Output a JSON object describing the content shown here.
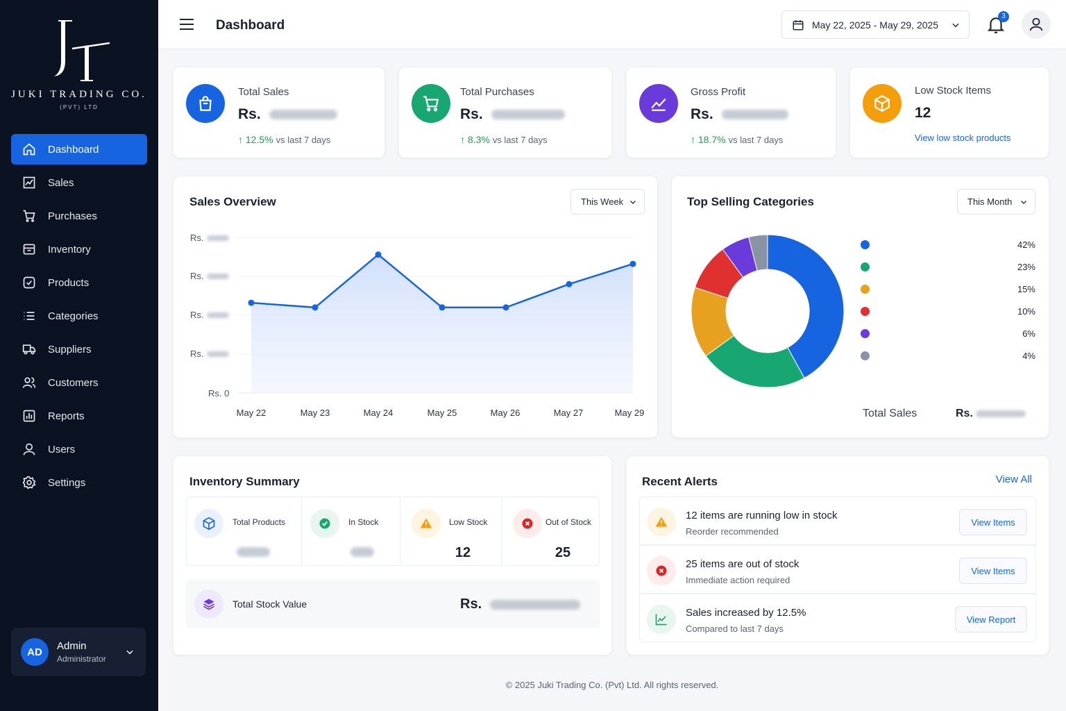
{
  "brand": {
    "name": "JUKI TRADING CO.",
    "sub": "(PVT) LTD"
  },
  "sidebar": {
    "items": [
      {
        "label": "Dashboard",
        "icon": "home-icon"
      },
      {
        "label": "Sales",
        "icon": "chart-line-icon"
      },
      {
        "label": "Purchases",
        "icon": "cart-icon"
      },
      {
        "label": "Inventory",
        "icon": "box-icon"
      },
      {
        "label": "Products",
        "icon": "package-icon"
      },
      {
        "label": "Categories",
        "icon": "list-icon"
      },
      {
        "label": "Suppliers",
        "icon": "truck-icon"
      },
      {
        "label": "Customers",
        "icon": "users-icon"
      },
      {
        "label": "Reports",
        "icon": "report-icon"
      },
      {
        "label": "Users",
        "icon": "user-icon"
      },
      {
        "label": "Settings",
        "icon": "gear-icon"
      }
    ],
    "user": {
      "initials": "AD",
      "name": "Admin",
      "role": "Administrator"
    }
  },
  "header": {
    "title": "Dashboard",
    "date_range": "May 22, 2025 - May 29, 2025",
    "notification_count": "3"
  },
  "stats": {
    "total_sales": {
      "label": "Total Sales",
      "currency": "Rs.",
      "change": "12.5%",
      "change_text": "vs last 7 days"
    },
    "total_purchases": {
      "label": "Total Purchases",
      "currency": "Rs.",
      "change": "8.3%",
      "change_text": "vs last 7 days"
    },
    "gross_profit": {
      "label": "Gross Profit",
      "currency": "Rs.",
      "change": "18.7%",
      "change_text": "vs last 7 days"
    },
    "low_stock": {
      "label": "Low Stock Items",
      "value": "12",
      "link": "View low stock products"
    }
  },
  "sales_overview": {
    "title": "Sales Overview",
    "period": "This Week",
    "y_prefix": "Rs.",
    "y_zero": "Rs. 0"
  },
  "top_categories": {
    "title": "Top Selling Categories",
    "period": "This Month",
    "total_label": "Total Sales",
    "total_currency": "Rs."
  },
  "chart_data": [
    {
      "type": "area",
      "title": "Sales Overview",
      "x": [
        "May 22",
        "May 23",
        "May 24",
        "May 25",
        "May 26",
        "May 27",
        "May 29"
      ],
      "y": [
        0.58,
        0.55,
        0.89,
        0.55,
        0.55,
        0.7,
        0.83
      ],
      "note_y": "relative values; y-axis value labels are obscured in source",
      "ylim": [
        0,
        1
      ],
      "grid": true
    },
    {
      "type": "pie",
      "title": "Top Selling Categories",
      "labels": [
        "",
        "",
        "",
        "",
        "",
        ""
      ],
      "values": [
        42,
        23,
        15,
        10,
        6,
        4
      ],
      "value_labels": [
        "42%",
        "23%",
        "15%",
        "10%",
        "6%",
        "4%"
      ],
      "colors": [
        "#1664e0",
        "#18a672",
        "#e8a020",
        "#e03030",
        "#6a3adb",
        "#8a93a3"
      ],
      "donut": true,
      "legend": "right"
    }
  ],
  "inventory_summary": {
    "title": "Inventory Summary",
    "cells": [
      {
        "label": "Total Products",
        "value": ""
      },
      {
        "label": "In Stock",
        "value": ""
      },
      {
        "label": "Low Stock",
        "value": "12"
      },
      {
        "label": "Out of Stock",
        "value": "25"
      }
    ],
    "total_stock_label": "Total Stock Value",
    "total_stock_currency": "Rs."
  },
  "alerts": {
    "title": "Recent Alerts",
    "view_all": "View All",
    "items": [
      {
        "title": "12 items are running low in stock",
        "sub": "Reorder recommended",
        "button": "View Items",
        "color": "#f59e0b"
      },
      {
        "title": "25 items are out of stock",
        "sub": "Immediate action required",
        "button": "View Items",
        "color": "#dc2626"
      },
      {
        "title": "Sales increased by 12.5%",
        "sub": "Compared to last 7 days",
        "button": "View Report",
        "color": "#16a34a"
      }
    ]
  },
  "footer": {
    "text": "© 2025 Juki Trading Co. (Pvt) Ltd. All rights reserved."
  }
}
